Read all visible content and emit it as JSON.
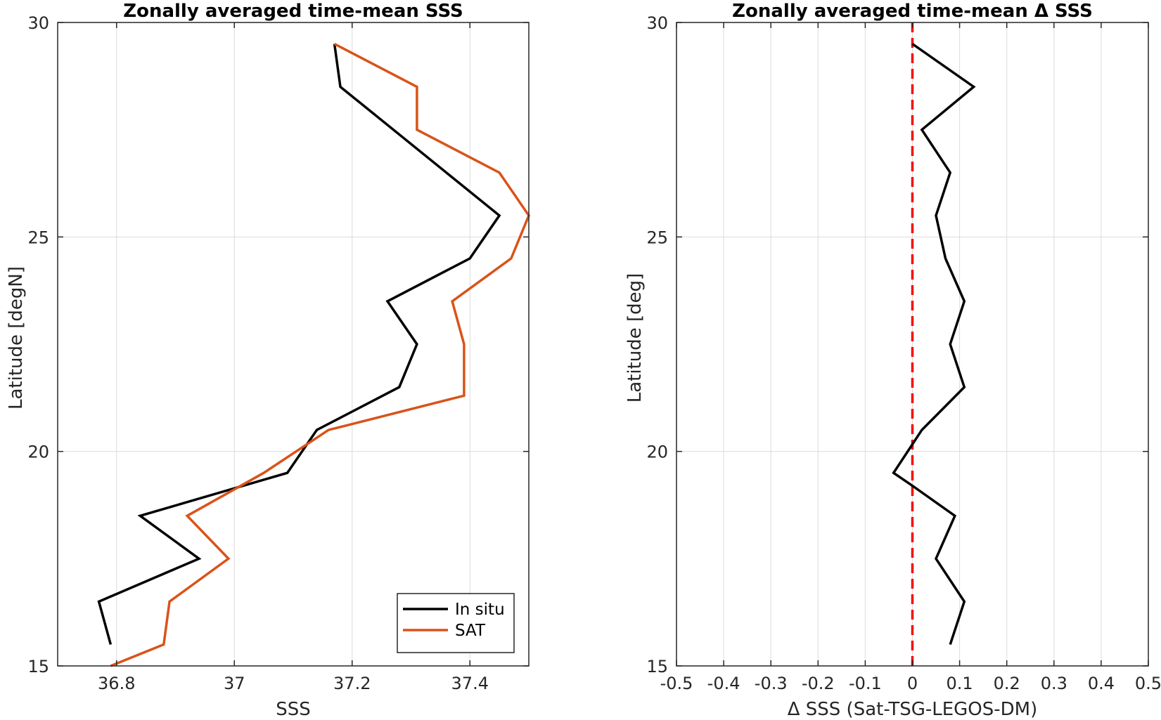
{
  "chart_data": [
    {
      "type": "line",
      "title": "Zonally averaged time-mean SSS",
      "xlabel": "SSS",
      "ylabel": "Latitude [degN]",
      "xlim": [
        36.7,
        37.5
      ],
      "ylim": [
        15,
        30
      ],
      "xticks": [
        36.8,
        37,
        37.2,
        37.4
      ],
      "xtick_labels": [
        "36.8",
        "37",
        "37.2",
        "37.4"
      ],
      "yticks": [
        15,
        20,
        25,
        30
      ],
      "ytick_labels": [
        "15",
        "20",
        "25",
        "30"
      ],
      "grid": true,
      "legend": "bottom-right",
      "series": [
        {
          "name": "In situ",
          "color": "#000000",
          "x": [
            36.79,
            36.77,
            36.94,
            36.84,
            37.09,
            37.14,
            37.28,
            37.31,
            37.26,
            37.4,
            37.45,
            37.36,
            37.18,
            37.17
          ],
          "y": [
            15.5,
            16.5,
            17.5,
            18.5,
            19.5,
            20.5,
            21.5,
            22.5,
            23.5,
            24.5,
            25.5,
            26.5,
            28.5,
            29.5
          ]
        },
        {
          "name": "SAT",
          "color": "#D95319",
          "x": [
            36.79,
            36.88,
            36.89,
            36.99,
            36.92,
            37.05,
            37.16,
            37.39,
            37.39,
            37.37,
            37.47,
            37.5,
            37.45,
            37.31,
            37.31,
            37.17
          ],
          "y": [
            15.0,
            15.5,
            16.5,
            17.5,
            18.5,
            19.5,
            20.5,
            21.3,
            22.5,
            23.5,
            24.5,
            25.5,
            26.5,
            27.5,
            28.5,
            29.5
          ]
        }
      ]
    },
    {
      "type": "line",
      "title": "Zonally averaged time-mean Δ SSS",
      "xlabel": "Δ SSS (Sat-TSG-LEGOS-DM)",
      "ylabel": "Latitude [deg]",
      "xlim": [
        -0.5,
        0.5
      ],
      "ylim": [
        15,
        30
      ],
      "xticks": [
        -0.5,
        -0.4,
        -0.3,
        -0.2,
        -0.1,
        0,
        0.1,
        0.2,
        0.3,
        0.4,
        0.5
      ],
      "xtick_labels": [
        "-0.5",
        "-0.4",
        "-0.3",
        "-0.2",
        "-0.1",
        "0",
        "0.1",
        "0.2",
        "0.3",
        "0.4",
        "0.5"
      ],
      "yticks": [
        15,
        20,
        25,
        30
      ],
      "ytick_labels": [
        "15",
        "20",
        "25",
        "30"
      ],
      "grid": true,
      "reference_line": {
        "x": 0,
        "color": "#FF0000",
        "style": "dashed"
      },
      "series": [
        {
          "color": "#000000",
          "x": [
            0.08,
            0.11,
            0.05,
            0.09,
            0.0,
            -0.04,
            0.02,
            0.11,
            0.08,
            0.11,
            0.07,
            0.05,
            0.08,
            0.02,
            0.13,
            0.0
          ],
          "y": [
            15.5,
            16.5,
            17.5,
            18.5,
            19.2,
            19.5,
            20.5,
            21.5,
            22.5,
            23.5,
            24.5,
            25.5,
            26.5,
            27.5,
            28.5,
            29.5
          ]
        }
      ]
    }
  ]
}
